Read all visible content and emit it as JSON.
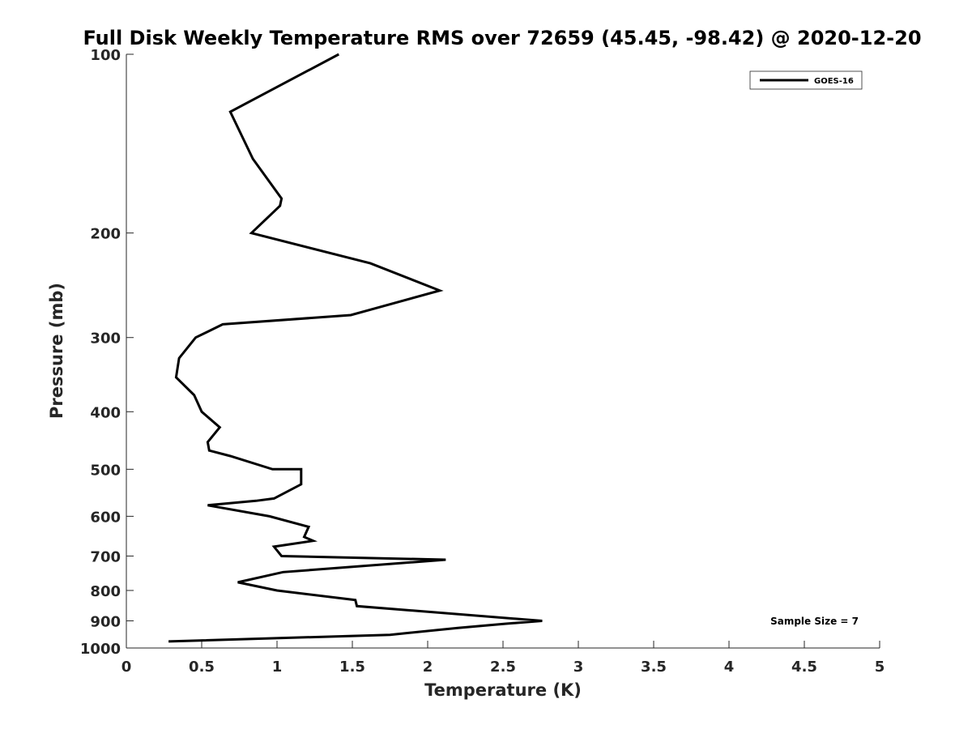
{
  "chart_data": {
    "type": "line",
    "title": "Full Disk Weekly Temperature RMS over 72659 (45.45, -98.42) @ 2020-12-20",
    "xlabel": "Temperature (K)",
    "ylabel": "Pressure (mb)",
    "xlim": [
      0,
      5
    ],
    "ylim": [
      100,
      1000
    ],
    "y_scale": "log",
    "y_reversed": true,
    "x_ticks": [
      "0",
      "0.5",
      "1",
      "1.5",
      "2",
      "2.5",
      "3",
      "3.5",
      "4",
      "4.5",
      "5"
    ],
    "y_ticks": [
      "100",
      "200",
      "300",
      "400",
      "500",
      "600",
      "700",
      "800",
      "900",
      "1000"
    ],
    "grid": false,
    "legend_position": "top-right",
    "annotation": "Sample Size = 7",
    "series": [
      {
        "name": "GOES-16",
        "color": "#000000",
        "x": [
          1.41,
          0.69,
          0.84,
          1.03,
          1.02,
          0.83,
          1.62,
          2.08,
          1.49,
          0.64,
          0.46,
          0.35,
          0.33,
          0.45,
          0.5,
          0.62,
          0.54,
          0.55,
          0.69,
          0.97,
          1.16,
          1.16,
          0.98,
          0.86,
          0.54,
          0.95,
          1.21,
          1.18,
          1.24,
          0.98,
          1.03,
          2.12,
          1.04,
          0.74,
          1.0,
          1.52,
          1.53,
          2.76,
          2.52,
          2.2,
          1.75,
          0.28
        ],
        "y": [
          100,
          125,
          150,
          175,
          180,
          200,
          225,
          250,
          275,
          285,
          300,
          325,
          350,
          375,
          400,
          425,
          450,
          465,
          475,
          500,
          500,
          530,
          560,
          565,
          575,
          600,
          625,
          650,
          660,
          675,
          700,
          710,
          745,
          775,
          800,
          830,
          850,
          900,
          910,
          925,
          950,
          975
        ]
      }
    ]
  }
}
